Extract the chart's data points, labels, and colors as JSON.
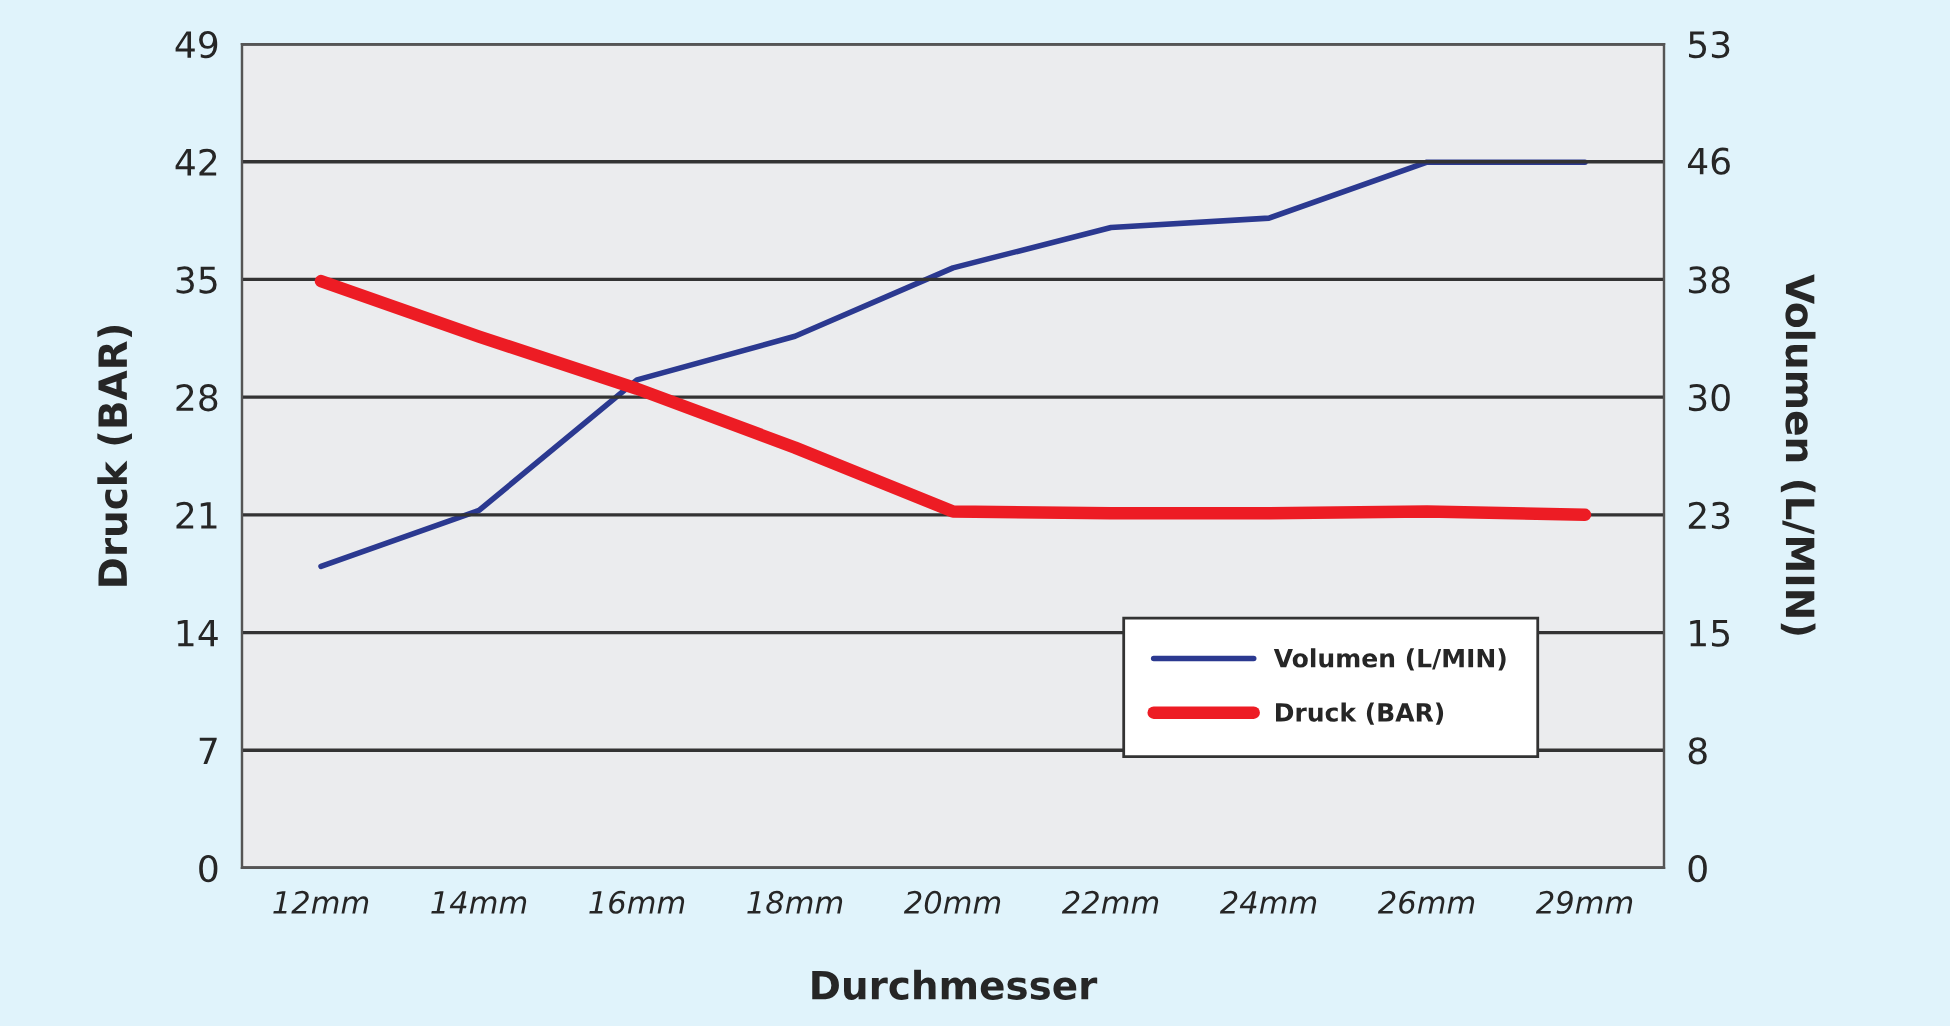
{
  "chart_data": {
    "type": "line",
    "xlabel": "Durchmesser",
    "ylabel": "Druck (BAR)",
    "y2label": "Volumen (L/MIN)",
    "categories": [
      "12mm",
      "14mm",
      "16mm",
      "18mm",
      "20mm",
      "22mm",
      "24mm",
      "26mm",
      "29mm"
    ],
    "ylim": [
      0,
      49
    ],
    "yticks": [
      0,
      7,
      14,
      21,
      28,
      35,
      42,
      49
    ],
    "y2lim": [
      0,
      53
    ],
    "y2ticks": [
      0,
      {
        "value": 7.57,
        "label": "8"
      },
      {
        "value": 15.14,
        "label": "15"
      },
      {
        "value": 22.71,
        "label": "23"
      },
      {
        "value": 30.29,
        "label": "30"
      },
      {
        "value": 37.86,
        "label": "38"
      },
      {
        "value": 45.5,
        "label": "46"
      },
      53
    ],
    "grid": "y",
    "legend": "bottom right",
    "marker": "none",
    "line_style": "solid",
    "series": [
      {
        "name": "Volumen (L/MIN)",
        "color": "#2b3990",
        "axis": "y2",
        "values": [
          19.4,
          23.0,
          31.4,
          34.2,
          38.6,
          41.2,
          41.8,
          45.4,
          45.4
        ]
      },
      {
        "name": "Druck (BAR)",
        "color": "#ed1c24",
        "values": [
          34.9,
          31.6,
          28.5,
          25.0,
          21.2,
          21.1,
          21.1,
          21.2,
          21.0
        ]
      }
    ]
  }
}
